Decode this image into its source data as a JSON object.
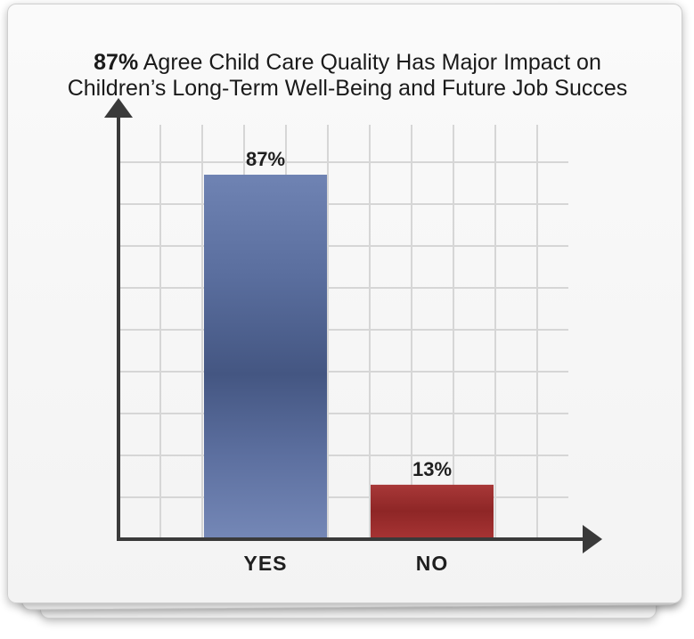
{
  "header": {
    "title_bold": "87%",
    "title_rest": " Agree Child Care Quality Has Major Impact on",
    "title_line2": "Children’s Long-Term Well-Being and Future Job Succes"
  },
  "chart_data": {
    "type": "bar",
    "title": "87% Agree Child Care Quality Has Major Impact on Children’s Long-Term Well-Being and Future Job Succes",
    "categories": [
      "YES",
      "NO"
    ],
    "values": [
      87,
      13
    ],
    "data_labels": [
      "87%",
      "13%"
    ],
    "colors": [
      "#5a6f9f",
      "#9b2e2e"
    ],
    "xlabel": "",
    "ylabel": "",
    "ylim": [
      0,
      100
    ],
    "grid": true,
    "legend": "none",
    "axis_color": "#3a3a3a",
    "grid_color": "#d6d6d6"
  }
}
